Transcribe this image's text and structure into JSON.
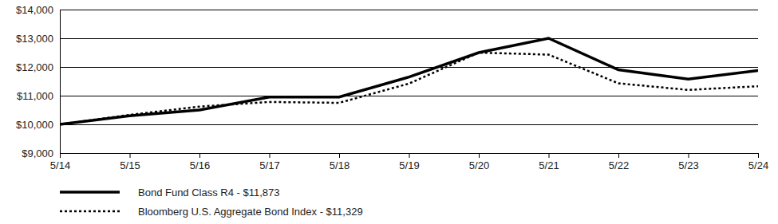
{
  "chart_data": {
    "type": "line",
    "categories": [
      "5/14",
      "5/15",
      "5/16",
      "5/17",
      "5/18",
      "5/19",
      "5/20",
      "5/21",
      "5/22",
      "5/23",
      "5/24"
    ],
    "series": [
      {
        "name": "Bond Fund Class R4 - $11,873",
        "color": "#000000",
        "line_style": "solid",
        "values": [
          10000,
          10300,
          10500,
          10950,
          10950,
          11650,
          12500,
          13000,
          11900,
          11580,
          11873
        ]
      },
      {
        "name": "Bloomberg U.S. Aggregate Bond Index - $11,329",
        "color": "#000000",
        "line_style": "dotted",
        "values": [
          10000,
          10330,
          10620,
          10780,
          10750,
          11420,
          12500,
          12430,
          11430,
          11200,
          11329
        ]
      }
    ],
    "ylim": [
      9000,
      14000
    ],
    "yticks": [
      {
        "value": 9000,
        "label": "$9,000"
      },
      {
        "value": 10000,
        "label": "$10,000"
      },
      {
        "value": 11000,
        "label": "$11,000"
      },
      {
        "value": 12000,
        "label": "$12,000"
      },
      {
        "value": 13000,
        "label": "$13,000"
      },
      {
        "value": 14000,
        "label": "$14,000"
      }
    ],
    "grid": true,
    "legend": "bottom"
  }
}
